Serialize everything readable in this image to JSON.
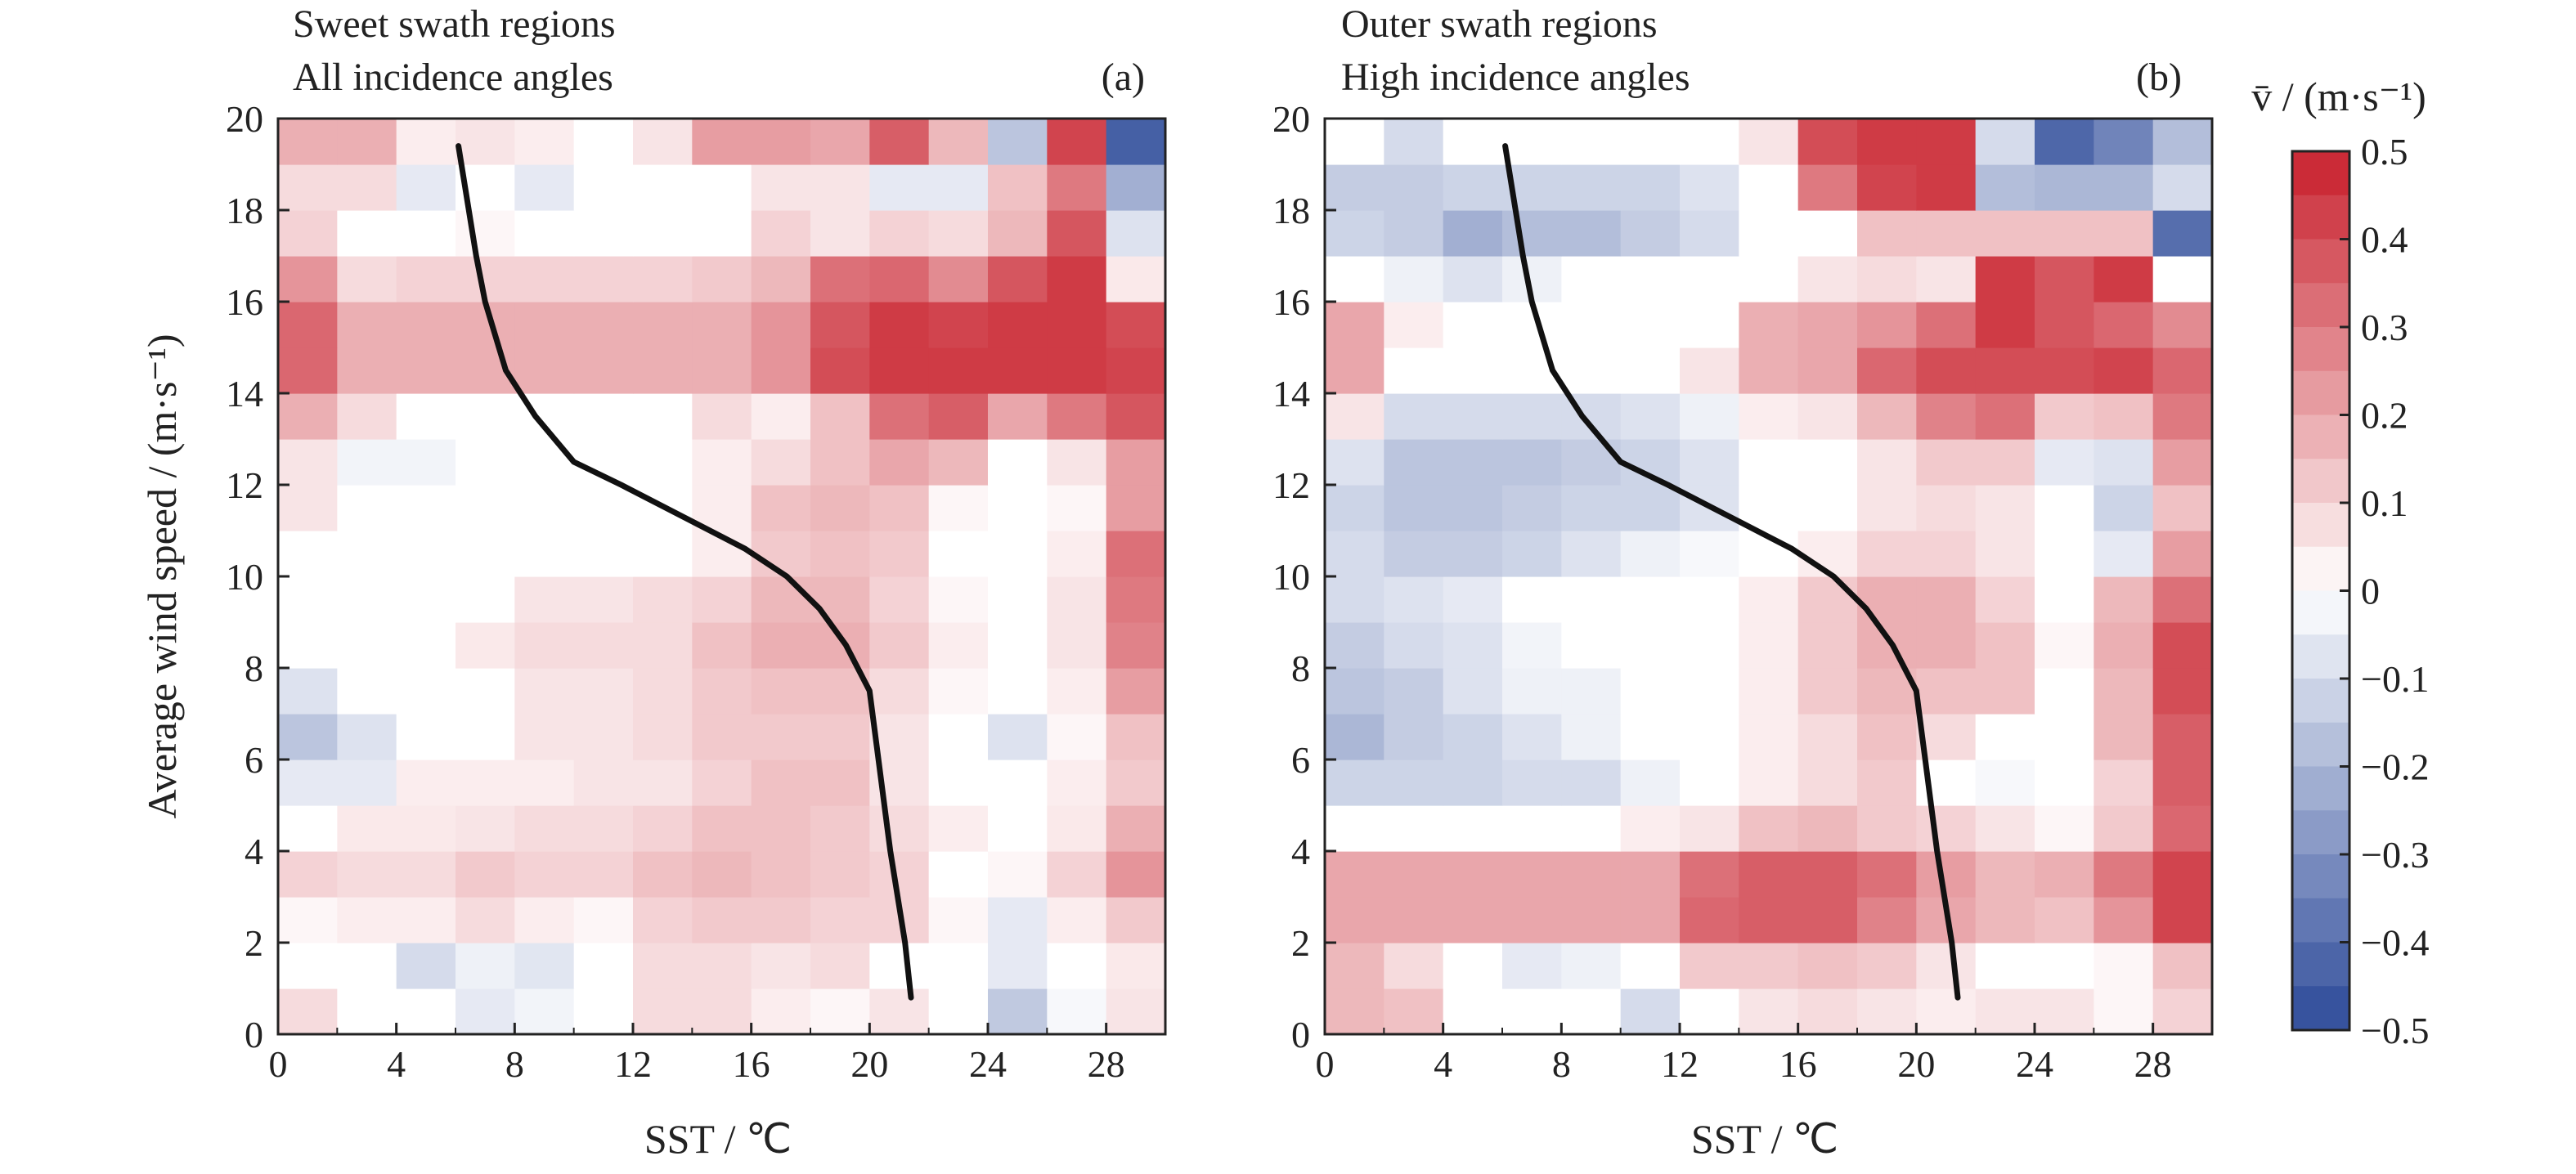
{
  "colorbar": {
    "label": "v̄ / (m·s⁻¹)",
    "min": -0.5,
    "max": 0.5,
    "ticks": [
      "0.5",
      "0.4",
      "0.3",
      "0.2",
      "0.1",
      "0",
      "−0.1",
      "−0.2",
      "−0.3",
      "−0.4",
      "−0.5"
    ],
    "colors": {
      "negative_max": "#2c4a99",
      "zero": "#ffffff",
      "positive_max": "#c8202c"
    }
  },
  "chart_data": [
    {
      "type": "heatmap",
      "panel_label": "(a)",
      "title_lines": [
        "Sweet swath regions",
        "All incidence angles"
      ],
      "xlabel": "SST / ℃",
      "ylabel": "Average wind speed / (m·s⁻¹)",
      "xlim": [
        0,
        30
      ],
      "ylim": [
        0,
        20
      ],
      "x_ticks": [
        "0",
        "4",
        "8",
        "12",
        "16",
        "20",
        "24",
        "28"
      ],
      "y_ticks": [
        "0",
        "2",
        "4",
        "6",
        "8",
        "10",
        "12",
        "14",
        "16",
        "18",
        "20"
      ],
      "x_bin_edges": [
        0,
        2,
        4,
        6,
        8,
        10,
        12,
        14,
        16,
        18,
        20,
        22,
        24,
        26,
        28,
        30
      ],
      "y_bin_edges": [
        0,
        1,
        2,
        3,
        4,
        5,
        6,
        7,
        8,
        9,
        10,
        11,
        12,
        13,
        14,
        15,
        16,
        17,
        18,
        19,
        20
      ],
      "rows_bottom_to_top": [
        [
          0.08,
          0.0,
          0.0,
          -0.06,
          -0.03,
          0.0,
          0.08,
          0.08,
          0.04,
          0.02,
          0.06,
          0.0,
          -0.15,
          -0.02,
          0.06
        ],
        [
          0.0,
          0.0,
          -0.1,
          -0.04,
          -0.07,
          0.0,
          0.08,
          0.08,
          0.06,
          0.08,
          0.0,
          0.0,
          -0.06,
          0.0,
          0.05
        ],
        [
          0.02,
          0.04,
          0.04,
          0.08,
          0.04,
          0.02,
          0.1,
          0.12,
          0.12,
          0.1,
          0.1,
          0.02,
          -0.06,
          0.04,
          0.12
        ],
        [
          0.1,
          0.08,
          0.08,
          0.12,
          0.1,
          0.1,
          0.14,
          0.16,
          0.14,
          0.12,
          0.1,
          0.0,
          0.02,
          0.1,
          0.24
        ],
        [
          0.0,
          0.05,
          0.05,
          0.06,
          0.08,
          0.08,
          0.1,
          0.14,
          0.14,
          0.12,
          0.08,
          0.04,
          0.0,
          0.05,
          0.18
        ],
        [
          -0.06,
          -0.06,
          0.04,
          0.04,
          0.04,
          0.06,
          0.06,
          0.1,
          0.14,
          0.14,
          0.06,
          0.0,
          0.0,
          0.04,
          0.12
        ],
        [
          -0.16,
          -0.08,
          0.0,
          0.0,
          0.06,
          0.06,
          0.08,
          0.12,
          0.12,
          0.12,
          0.06,
          0.0,
          -0.08,
          0.02,
          0.14
        ],
        [
          -0.08,
          0.0,
          0.0,
          0.0,
          0.06,
          0.06,
          0.08,
          0.12,
          0.14,
          0.14,
          0.08,
          0.02,
          0.0,
          0.04,
          0.22
        ],
        [
          0.0,
          0.0,
          0.0,
          0.05,
          0.08,
          0.08,
          0.08,
          0.14,
          0.18,
          0.18,
          0.12,
          0.04,
          0.0,
          0.06,
          0.28
        ],
        [
          0.0,
          0.0,
          0.0,
          0.0,
          0.06,
          0.06,
          0.08,
          0.1,
          0.16,
          0.16,
          0.1,
          0.02,
          0.0,
          0.06,
          0.3
        ],
        [
          0.0,
          0.0,
          0.0,
          0.0,
          0.0,
          0.0,
          0.0,
          0.04,
          0.12,
          0.14,
          0.12,
          0.0,
          0.0,
          0.04,
          0.32
        ],
        [
          0.06,
          0.0,
          0.0,
          0.0,
          0.0,
          0.0,
          0.0,
          0.04,
          0.14,
          0.16,
          0.14,
          0.02,
          0.0,
          0.02,
          0.22
        ],
        [
          0.06,
          -0.03,
          -0.03,
          0.0,
          0.0,
          0.0,
          0.0,
          0.04,
          0.08,
          0.14,
          0.2,
          0.16,
          0.0,
          0.06,
          0.22
        ],
        [
          0.18,
          0.08,
          0.0,
          0.0,
          0.0,
          0.0,
          0.0,
          0.08,
          0.04,
          0.14,
          0.32,
          0.36,
          0.2,
          0.3,
          0.38
        ],
        [
          0.34,
          0.18,
          0.18,
          0.18,
          0.18,
          0.18,
          0.18,
          0.18,
          0.24,
          0.4,
          0.44,
          0.44,
          0.44,
          0.44,
          0.42
        ],
        [
          0.34,
          0.18,
          0.18,
          0.18,
          0.18,
          0.18,
          0.18,
          0.18,
          0.24,
          0.38,
          0.44,
          0.42,
          0.44,
          0.44,
          0.4
        ],
        [
          0.24,
          0.08,
          0.1,
          0.1,
          0.1,
          0.1,
          0.1,
          0.12,
          0.16,
          0.32,
          0.34,
          0.26,
          0.38,
          0.44,
          0.05
        ],
        [
          0.1,
          0.0,
          0.0,
          0.02,
          0.0,
          0.0,
          0.0,
          0.0,
          0.1,
          0.06,
          0.1,
          0.08,
          0.16,
          0.38,
          -0.08
        ],
        [
          0.08,
          0.08,
          -0.06,
          0.0,
          -0.06,
          0.0,
          0.0,
          0.0,
          0.06,
          0.06,
          -0.06,
          -0.06,
          0.14,
          0.3,
          -0.22
        ],
        [
          0.18,
          0.18,
          0.04,
          0.06,
          0.04,
          0.0,
          0.06,
          0.22,
          0.22,
          0.2,
          0.36,
          0.16,
          -0.16,
          0.42,
          -0.44
        ]
      ],
      "line_series": {
        "x": [
          21.4,
          21.2,
          20.7,
          20.3,
          20.0,
          19.2,
          18.3,
          17.2,
          15.8,
          13.7,
          11.6,
          10.0,
          8.7,
          7.7,
          7.0,
          6.7,
          6.1
        ],
        "y": [
          0.8,
          2.0,
          4.0,
          6.0,
          7.5,
          8.5,
          9.3,
          10.0,
          10.6,
          11.3,
          12.0,
          12.5,
          13.5,
          14.5,
          16.0,
          17.0,
          19.4
        ]
      }
    },
    {
      "type": "heatmap",
      "panel_label": "(b)",
      "title_lines": [
        "Outer swath regions",
        "High incidence angles"
      ],
      "xlabel": "SST / ℃",
      "ylabel": "",
      "xlim": [
        0,
        30
      ],
      "ylim": [
        0,
        20
      ],
      "x_ticks": [
        "0",
        "4",
        "8",
        "12",
        "16",
        "20",
        "24",
        "28"
      ],
      "y_ticks": [
        "0",
        "2",
        "4",
        "6",
        "8",
        "10",
        "12",
        "14",
        "16",
        "18",
        "20"
      ],
      "x_bin_edges": [
        0,
        2,
        4,
        6,
        8,
        10,
        12,
        14,
        16,
        18,
        20,
        22,
        24,
        26,
        28,
        30
      ],
      "y_bin_edges": [
        0,
        1,
        2,
        3,
        4,
        5,
        6,
        7,
        8,
        9,
        10,
        11,
        12,
        13,
        14,
        15,
        16,
        17,
        18,
        19,
        20
      ],
      "rows_bottom_to_top": [
        [
          0.16,
          0.14,
          0.0,
          0.0,
          0.0,
          -0.1,
          0.0,
          0.06,
          0.08,
          0.06,
          0.04,
          0.06,
          0.06,
          0.02,
          0.1
        ],
        [
          0.16,
          0.08,
          0.0,
          -0.06,
          -0.04,
          0.0,
          0.12,
          0.12,
          0.14,
          0.12,
          0.06,
          0.0,
          0.0,
          0.02,
          0.14
        ],
        [
          0.2,
          0.2,
          0.2,
          0.2,
          0.2,
          0.2,
          0.34,
          0.36,
          0.36,
          0.28,
          0.2,
          0.16,
          0.14,
          0.24,
          0.42
        ],
        [
          0.2,
          0.2,
          0.2,
          0.2,
          0.2,
          0.2,
          0.32,
          0.36,
          0.36,
          0.32,
          0.22,
          0.16,
          0.18,
          0.3,
          0.42
        ],
        [
          0.0,
          0.0,
          0.0,
          0.0,
          0.0,
          0.04,
          0.06,
          0.14,
          0.16,
          0.12,
          0.1,
          0.06,
          0.02,
          0.12,
          0.34
        ],
        [
          -0.12,
          -0.12,
          -0.12,
          -0.1,
          -0.1,
          -0.04,
          0.0,
          0.04,
          0.08,
          0.12,
          0.0,
          -0.02,
          0.0,
          0.1,
          0.36
        ],
        [
          -0.2,
          -0.14,
          -0.12,
          -0.08,
          -0.04,
          0.0,
          0.0,
          0.04,
          0.08,
          0.14,
          0.08,
          0.0,
          0.0,
          0.16,
          0.36
        ],
        [
          -0.16,
          -0.14,
          -0.08,
          -0.04,
          -0.04,
          0.0,
          0.0,
          0.04,
          0.12,
          0.16,
          0.14,
          0.14,
          0.0,
          0.16,
          0.4
        ],
        [
          -0.14,
          -0.1,
          -0.08,
          -0.03,
          0.0,
          0.0,
          0.0,
          0.04,
          0.12,
          0.18,
          0.18,
          0.14,
          0.02,
          0.18,
          0.4
        ],
        [
          -0.1,
          -0.08,
          -0.06,
          0.0,
          0.0,
          0.0,
          0.0,
          0.04,
          0.12,
          0.18,
          0.18,
          0.1,
          0.0,
          0.16,
          0.32
        ],
        [
          -0.1,
          -0.14,
          -0.14,
          -0.12,
          -0.08,
          -0.04,
          -0.02,
          0.0,
          0.04,
          0.1,
          0.1,
          0.06,
          0.0,
          -0.06,
          0.22
        ],
        [
          -0.12,
          -0.16,
          -0.16,
          -0.14,
          -0.12,
          -0.12,
          -0.08,
          0.0,
          0.0,
          0.06,
          0.08,
          0.06,
          0.0,
          -0.12,
          0.14
        ],
        [
          -0.08,
          -0.16,
          -0.16,
          -0.16,
          -0.14,
          -0.12,
          -0.08,
          0.0,
          0.0,
          0.06,
          0.12,
          0.12,
          -0.06,
          -0.08,
          0.22
        ],
        [
          0.06,
          -0.1,
          -0.1,
          -0.1,
          -0.1,
          -0.08,
          -0.04,
          0.04,
          0.06,
          0.16,
          0.28,
          0.32,
          0.12,
          0.14,
          0.3
        ],
        [
          0.2,
          0.0,
          0.0,
          0.0,
          0.0,
          0.0,
          0.06,
          0.18,
          0.2,
          0.34,
          0.4,
          0.4,
          0.4,
          0.42,
          0.34
        ],
        [
          0.2,
          0.04,
          0.0,
          0.0,
          0.0,
          0.0,
          0.0,
          0.18,
          0.2,
          0.24,
          0.32,
          0.44,
          0.38,
          0.34,
          0.26
        ],
        [
          0.0,
          -0.04,
          -0.08,
          -0.04,
          0.0,
          0.0,
          0.0,
          0.0,
          0.06,
          0.08,
          0.06,
          0.44,
          0.38,
          0.44,
          0.0
        ],
        [
          -0.12,
          -0.14,
          -0.22,
          -0.18,
          -0.18,
          -0.14,
          -0.1,
          0.0,
          0.0,
          0.14,
          0.14,
          0.14,
          0.14,
          0.14,
          -0.4
        ],
        [
          -0.14,
          -0.14,
          -0.12,
          -0.12,
          -0.12,
          -0.12,
          -0.08,
          0.0,
          0.3,
          0.42,
          0.44,
          -0.18,
          -0.2,
          -0.2,
          -0.1
        ],
        [
          0.0,
          -0.1,
          0.0,
          0.0,
          0.0,
          0.0,
          0.0,
          0.06,
          0.4,
          0.44,
          0.44,
          -0.1,
          -0.42,
          -0.34,
          -0.18
        ]
      ],
      "line_series": {
        "x": [
          21.4,
          21.2,
          20.7,
          20.3,
          20.0,
          19.2,
          18.3,
          17.2,
          15.8,
          13.7,
          11.6,
          10.0,
          8.7,
          7.7,
          7.0,
          6.7,
          6.1
        ],
        "y": [
          0.8,
          2.0,
          4.0,
          6.0,
          7.5,
          8.5,
          9.3,
          10.0,
          10.6,
          11.3,
          12.0,
          12.5,
          13.5,
          14.5,
          16.0,
          17.0,
          19.4
        ]
      }
    }
  ]
}
